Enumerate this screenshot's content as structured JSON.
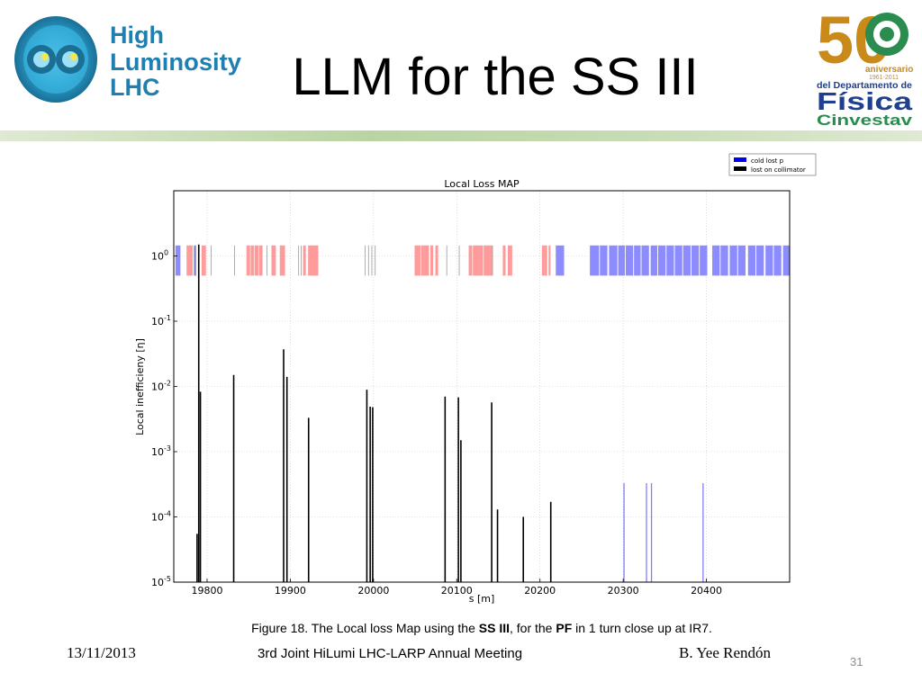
{
  "header": {
    "title": "LLM for the SS III",
    "logo_left": {
      "name": "High Luminosity LHC",
      "line1": "High",
      "line2": "Luminosity",
      "line3": "LHC"
    },
    "logo_right": {
      "name": "50 aniversario del Departamento de Física Cinvestav",
      "number": "50",
      "line1": "aniversario",
      "line2": "1961-2011",
      "line3": "del Departamento de",
      "line4": "Física",
      "line5": "Cinvestav"
    }
  },
  "caption": {
    "prefix": "Figure 18. The Local loss Map  using the ",
    "bold1": "SS III",
    "middle": ", for the ",
    "bold2": "PF",
    "suffix": " in 1 turn close up at IR7."
  },
  "footer": {
    "date": "13/11/2013",
    "meeting": "3rd Joint HiLumi LHC-LARP Annual Meeting",
    "author": "B. Yee Rendón",
    "page": "31"
  },
  "colors": {
    "cold": "#0000ff",
    "collimator": "#000000",
    "warm": "#ff0000",
    "gray": "#808080",
    "band": "#b9d4a2"
  },
  "chart_data": {
    "type": "bar",
    "title": "Local Loss MAP",
    "xlabel": "s [m]",
    "ylabel": "Local inefficieny [η]",
    "xlim": [
      19760,
      20500
    ],
    "ylim": [
      1e-05,
      10
    ],
    "yscale": "log",
    "xticks": [
      19800,
      19900,
      20000,
      20100,
      20200,
      20300,
      20400
    ],
    "yticks": [
      {
        "value": 1,
        "label": "10",
        "exp": "0"
      },
      {
        "value": 0.1,
        "label": "10",
        "exp": "-1"
      },
      {
        "value": 0.01,
        "label": "10",
        "exp": "-2"
      },
      {
        "value": 0.001,
        "label": "10",
        "exp": "-3"
      },
      {
        "value": 0.0001,
        "label": "10",
        "exp": "-4"
      },
      {
        "value": 1e-05,
        "label": "10",
        "exp": "-5"
      }
    ],
    "grid": true,
    "legend_position": "top-right",
    "series": [
      {
        "name": "cold lost p",
        "color": "#0000ff",
        "x": [
          20301,
          20328,
          20334,
          20396
        ],
        "values": [
          0.00033,
          0.00033,
          0.00033,
          0.00033
        ]
      },
      {
        "name": "lost on collimator",
        "color": "#000000",
        "x": [
          19788,
          19790,
          19792,
          19832,
          19892,
          19896,
          19922,
          19992,
          19996,
          19999,
          20086,
          20102,
          20105,
          20142,
          20149,
          20180,
          20213
        ],
        "values": [
          5.5e-05,
          1.5,
          0.0083,
          0.015,
          0.037,
          0.014,
          0.0033,
          0.0089,
          0.0049,
          0.0048,
          0.007,
          0.0068,
          0.0015,
          0.0057,
          0.00013,
          0.0001,
          0.00017
        ]
      }
    ],
    "element_strip": {
      "y_range": [
        0.5,
        1.45
      ],
      "blue_blocks": [
        [
          19762,
          19768
        ],
        [
          19784,
          19787
        ],
        [
          20219,
          20229
        ],
        [
          20260,
          20271
        ],
        [
          20272,
          20281
        ],
        [
          20283,
          20293
        ],
        [
          20294,
          20302
        ],
        [
          20303,
          20312
        ],
        [
          20313,
          20321
        ],
        [
          20322,
          20331
        ],
        [
          20333,
          20341
        ],
        [
          20342,
          20351
        ],
        [
          20352,
          20361
        ],
        [
          20362,
          20371
        ],
        [
          20372,
          20381
        ],
        [
          20382,
          20391
        ],
        [
          20392,
          20401
        ],
        [
          20407,
          20416
        ],
        [
          20417,
          20426
        ],
        [
          20428,
          20437
        ],
        [
          20438,
          20447
        ],
        [
          20450,
          20459
        ],
        [
          20460,
          20469
        ],
        [
          20471,
          20480
        ],
        [
          20481,
          20490
        ],
        [
          20492,
          20500
        ]
      ],
      "red_lines": [
        19776,
        19777,
        19778,
        19779,
        19780,
        19781,
        19782,
        19794,
        19795,
        19796,
        19797,
        19798,
        19848,
        19849,
        19850,
        19851,
        19853,
        19854,
        19855,
        19856,
        19858,
        19859,
        19860,
        19861,
        19863,
        19864,
        19865,
        19866,
        19878,
        19879,
        19880,
        19881,
        19882,
        19888,
        19889,
        19890,
        19891,
        19892,
        19893,
        19916,
        19917,
        19918,
        19922,
        19923,
        19924,
        19925,
        19926,
        19927,
        19928,
        19929,
        19930,
        19931,
        19932,
        19933,
        20050,
        20051,
        20052,
        20053,
        20054,
        20055,
        20056,
        20058,
        20059,
        20060,
        20061,
        20062,
        20063,
        20064,
        20065,
        20066,
        20069,
        20070,
        20071,
        20075,
        20076,
        20077,
        20115,
        20116,
        20117,
        20118,
        20120,
        20121,
        20122,
        20123,
        20124,
        20125,
        20126,
        20127,
        20128,
        20129,
        20130,
        20131,
        20133,
        20134,
        20135,
        20136,
        20137,
        20138,
        20139,
        20140,
        20141,
        20142,
        20156,
        20157,
        20158,
        20162,
        20163,
        20164,
        20165,
        20166,
        20203,
        20204,
        20205,
        20206,
        20207,
        20208,
        20211,
        20212
      ],
      "gray_lines": [
        19786,
        19805,
        19833,
        19872,
        19910,
        19913,
        19990,
        19994,
        19998,
        20002,
        20088,
        20103,
        20143
      ]
    }
  }
}
